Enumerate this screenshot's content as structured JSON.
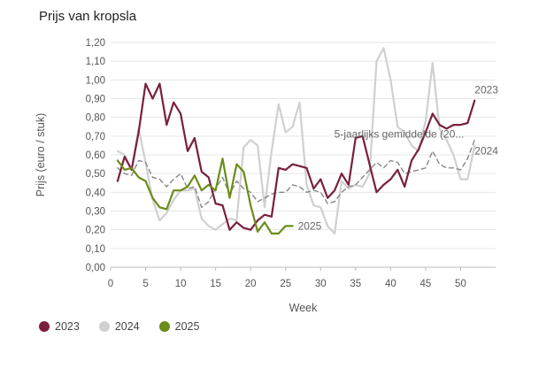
{
  "page_title": "Prijs van kropsla",
  "chart_data": {
    "type": "line",
    "title": "Prijs van kropsla",
    "xlabel": "Week",
    "ylabel": "Prijs (euro / stuk)",
    "xlim": [
      0,
      55
    ],
    "ylim": [
      0,
      1.2
    ],
    "x_ticks": [
      0,
      5,
      10,
      15,
      20,
      25,
      30,
      35,
      40,
      45,
      50
    ],
    "y_ticks": [
      0.0,
      0.1,
      0.2,
      0.3,
      0.4,
      0.5,
      0.6,
      0.7,
      0.8,
      0.9,
      1.0,
      1.1,
      1.2
    ],
    "y_tick_labels": [
      "0,00",
      "0,10",
      "0,20",
      "0,30",
      "0,40",
      "0,50",
      "0,60",
      "0,70",
      "0,80",
      "0,90",
      "1,00",
      "1,10",
      "1,20"
    ],
    "grid": "horizontal",
    "legend_position": "bottom-left",
    "series": [
      {
        "name": "2023",
        "color": "#7a1f3d",
        "label": "2023",
        "style": "solid",
        "x": [
          1,
          2,
          3,
          4,
          5,
          6,
          7,
          8,
          9,
          10,
          11,
          12,
          13,
          14,
          15,
          16,
          17,
          18,
          19,
          20,
          21,
          22,
          23,
          24,
          25,
          26,
          27,
          28,
          29,
          30,
          31,
          32,
          33,
          34,
          35,
          36,
          37,
          38,
          39,
          40,
          41,
          42,
          43,
          44,
          45,
          46,
          47,
          48,
          49,
          50,
          51,
          52
        ],
        "y": [
          0.46,
          0.59,
          0.52,
          0.72,
          0.98,
          0.9,
          0.98,
          0.76,
          0.88,
          0.82,
          0.62,
          0.69,
          0.51,
          0.48,
          0.34,
          0.33,
          0.2,
          0.24,
          0.21,
          0.2,
          0.25,
          0.28,
          0.27,
          0.53,
          0.52,
          0.55,
          0.54,
          0.53,
          0.42,
          0.47,
          0.37,
          0.41,
          0.5,
          0.44,
          0.69,
          0.7,
          0.55,
          0.4,
          0.44,
          0.47,
          0.52,
          0.43,
          0.57,
          0.63,
          0.72,
          0.82,
          0.76,
          0.74,
          0.76,
          0.76,
          0.77,
          0.89
        ]
      },
      {
        "name": "2024",
        "color": "#d0d0d0",
        "label": "2024",
        "style": "solid",
        "x": [
          1,
          2,
          3,
          4,
          5,
          6,
          7,
          8,
          9,
          10,
          11,
          12,
          13,
          14,
          15,
          16,
          17,
          18,
          19,
          20,
          21,
          22,
          23,
          24,
          25,
          26,
          27,
          28,
          29,
          30,
          31,
          32,
          33,
          34,
          35,
          36,
          37,
          38,
          39,
          40,
          41,
          42,
          43,
          44,
          45,
          46,
          47,
          48,
          49,
          50,
          51,
          52
        ],
        "y": [
          0.62,
          0.6,
          0.52,
          0.74,
          0.56,
          0.36,
          0.25,
          0.29,
          0.36,
          0.41,
          0.41,
          0.42,
          0.26,
          0.22,
          0.2,
          0.23,
          0.26,
          0.25,
          0.64,
          0.68,
          0.65,
          0.32,
          0.62,
          0.87,
          0.72,
          0.75,
          0.88,
          0.44,
          0.33,
          0.32,
          0.22,
          0.18,
          0.46,
          0.42,
          0.44,
          0.43,
          0.5,
          1.1,
          1.17,
          1.0,
          0.75,
          0.72,
          0.65,
          0.62,
          0.78,
          1.09,
          0.74,
          0.68,
          0.6,
          0.47,
          0.47,
          0.65
        ]
      },
      {
        "name": "2025",
        "color": "#6b8c1a",
        "label": "2025",
        "style": "solid",
        "x": [
          1,
          2,
          3,
          4,
          5,
          6,
          7,
          8,
          9,
          10,
          11,
          12,
          13,
          14,
          15,
          16,
          17,
          18,
          19,
          20,
          21,
          22,
          23,
          24,
          25,
          26
        ],
        "y": [
          0.57,
          0.52,
          0.53,
          0.48,
          0.46,
          0.37,
          0.32,
          0.31,
          0.41,
          0.41,
          0.43,
          0.49,
          0.41,
          0.44,
          0.41,
          0.58,
          0.37,
          0.55,
          0.51,
          0.33,
          0.19,
          0.24,
          0.18,
          0.18,
          0.22,
          0.22
        ]
      },
      {
        "name": "5-jaarlijks gemiddelde",
        "color": "#888888",
        "label": "5-jaarlijks gemiddelde (20...",
        "style": "dashed",
        "x": [
          1,
          2,
          3,
          4,
          5,
          6,
          7,
          8,
          9,
          10,
          11,
          12,
          13,
          14,
          15,
          16,
          17,
          18,
          19,
          20,
          21,
          22,
          23,
          24,
          25,
          26,
          27,
          28,
          29,
          30,
          31,
          32,
          33,
          34,
          35,
          36,
          37,
          38,
          39,
          40,
          41,
          42,
          43,
          44,
          45,
          46,
          47,
          48,
          49,
          50,
          51,
          52
        ],
        "y": [
          0.53,
          0.5,
          0.49,
          0.57,
          0.56,
          0.48,
          0.47,
          0.43,
          0.47,
          0.5,
          0.42,
          0.43,
          0.32,
          0.35,
          0.42,
          0.48,
          0.39,
          0.46,
          0.42,
          0.4,
          0.35,
          0.37,
          0.39,
          0.4,
          0.4,
          0.44,
          0.43,
          0.4,
          0.41,
          0.4,
          0.34,
          0.35,
          0.4,
          0.43,
          0.44,
          0.48,
          0.52,
          0.56,
          0.53,
          0.57,
          0.56,
          0.5,
          0.51,
          0.52,
          0.53,
          0.62,
          0.55,
          0.53,
          0.53,
          0.52,
          0.58,
          0.68
        ]
      }
    ]
  },
  "legend": [
    {
      "label": "2023",
      "color": "#7a1f3d"
    },
    {
      "label": "2024",
      "color": "#d0d0d0"
    },
    {
      "label": "2025",
      "color": "#6b8c1a"
    }
  ]
}
